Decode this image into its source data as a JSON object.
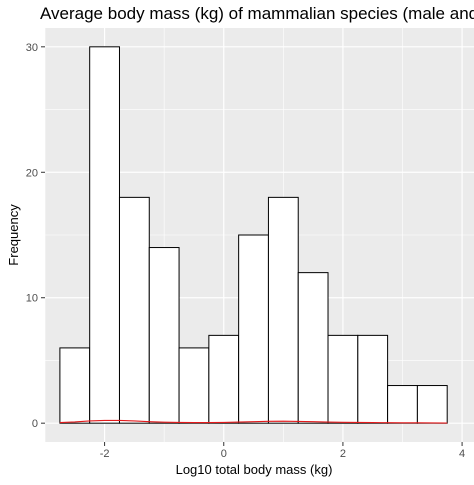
{
  "chart_data": {
    "type": "bar",
    "title": "Average body mass (kg) of mammalian species (male and female)",
    "xlabel": "Log10 total body mass (kg)",
    "ylabel": "Frequency",
    "xlim": [
      -3.0,
      4.2
    ],
    "ylim": [
      -1.5,
      31.5
    ],
    "x_ticks": [
      -2,
      0,
      2,
      4
    ],
    "y_ticks": [
      0,
      10,
      20,
      30
    ],
    "grid": true,
    "bin_width": 0.5,
    "bins": [
      {
        "start": -2.75,
        "end": -2.25,
        "count": 6
      },
      {
        "start": -2.25,
        "end": -1.75,
        "count": 30
      },
      {
        "start": -1.75,
        "end": -1.25,
        "count": 18
      },
      {
        "start": -1.25,
        "end": -0.75,
        "count": 14
      },
      {
        "start": -0.75,
        "end": -0.25,
        "count": 6
      },
      {
        "start": -0.25,
        "end": 0.25,
        "count": 7
      },
      {
        "start": 0.25,
        "end": 0.75,
        "count": 15
      },
      {
        "start": 0.75,
        "end": 1.25,
        "count": 18
      },
      {
        "start": 1.25,
        "end": 1.75,
        "count": 12
      },
      {
        "start": 1.75,
        "end": 2.25,
        "count": 7
      },
      {
        "start": 2.25,
        "end": 2.75,
        "count": 7
      },
      {
        "start": 2.75,
        "end": 3.25,
        "count": 3
      },
      {
        "start": 3.25,
        "end": 3.75,
        "count": 3
      }
    ],
    "density_line": {
      "color": "#e31a1c",
      "x": [
        -2.75,
        -2.5,
        -2.25,
        -2.0,
        -1.75,
        -1.5,
        -1.25,
        -1.0,
        -0.75,
        -0.5,
        -0.25,
        0.0,
        0.25,
        0.5,
        0.75,
        1.0,
        1.25,
        1.5,
        1.75,
        2.0,
        2.25,
        2.5,
        2.75,
        3.0,
        3.25,
        3.5,
        3.75
      ],
      "y": [
        0.05,
        0.1,
        0.18,
        0.22,
        0.22,
        0.18,
        0.12,
        0.08,
        0.06,
        0.05,
        0.05,
        0.06,
        0.09,
        0.12,
        0.15,
        0.16,
        0.14,
        0.12,
        0.09,
        0.07,
        0.06,
        0.05,
        0.04,
        0.03,
        0.03,
        0.02,
        0.01
      ]
    },
    "colors": {
      "panel_background": "#ebebeb",
      "grid": "#ffffff",
      "bar_fill": "#ffffff",
      "bar_stroke": "#000000"
    }
  }
}
